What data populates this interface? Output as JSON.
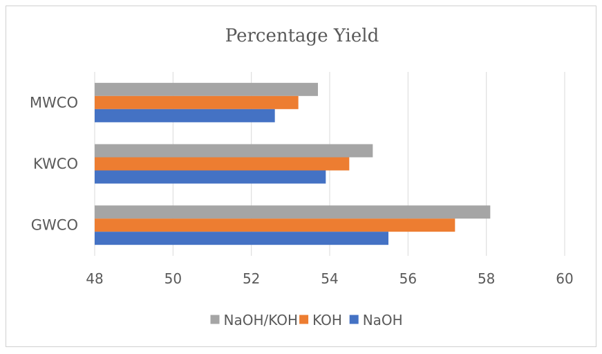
{
  "chart_data": {
    "type": "bar",
    "orientation": "horizontal",
    "title": "Percentage Yield",
    "categories": [
      "MWCO",
      "KWCO",
      "GWCO"
    ],
    "series": [
      {
        "name": "NaOH/KOH",
        "color": "#a5a5a5",
        "values": [
          53.7,
          55.1,
          58.1
        ]
      },
      {
        "name": "KOH",
        "color": "#ed7d31",
        "values": [
          53.2,
          54.5,
          57.2
        ]
      },
      {
        "name": "NaOH",
        "color": "#4472c4",
        "values": [
          52.6,
          53.9,
          55.5
        ]
      }
    ],
    "xlim": [
      48,
      60
    ],
    "xticks": [
      48,
      50,
      52,
      54,
      56,
      58,
      60
    ],
    "grid": true,
    "legend": "bottom",
    "xlabel": "",
    "ylabel": ""
  }
}
